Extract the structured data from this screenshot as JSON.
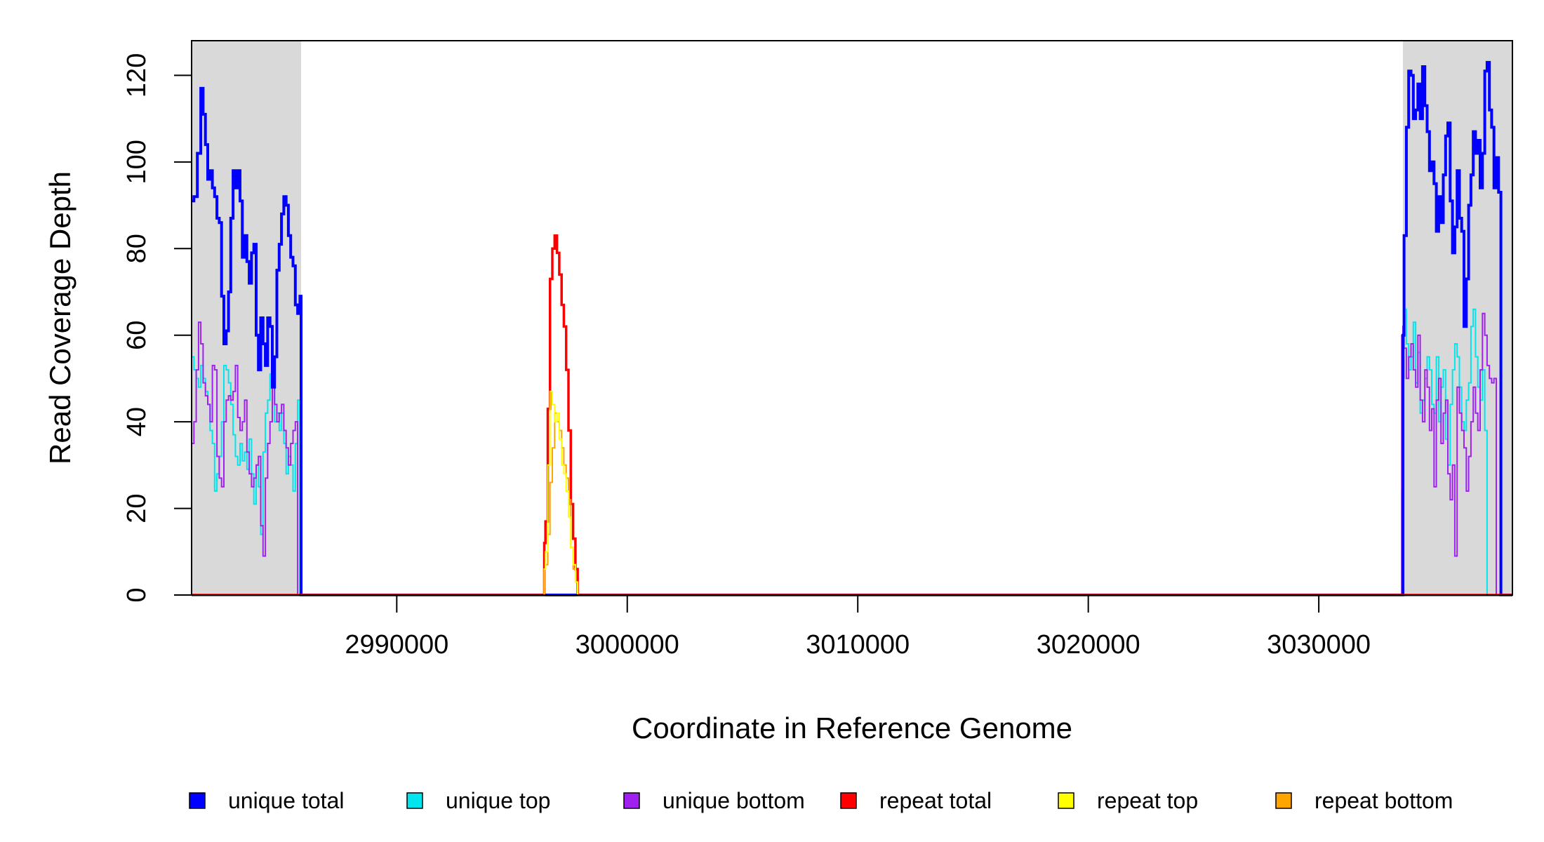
{
  "chart_data": {
    "type": "line",
    "title": "",
    "xlabel": "Coordinate in Reference Genome",
    "ylabel": "Read Coverage Depth",
    "xlim": [
      2981100,
      3038400
    ],
    "ylim": [
      0,
      128
    ],
    "x_ticks": [
      2990000,
      3000000,
      3010000,
      3020000,
      3030000
    ],
    "x_tick_labels": [
      "2990000",
      "3000000",
      "3010000",
      "3020000",
      "3030000"
    ],
    "y_ticks": [
      0,
      20,
      40,
      60,
      80,
      100,
      120
    ],
    "y_tick_labels": [
      "0",
      "20",
      "40",
      "60",
      "80",
      "100",
      "120"
    ],
    "grid": false,
    "legend_position": "bottom",
    "shaded_regions": [
      {
        "x0": 2981100,
        "x1": 2985850,
        "color": "#d9d9d9"
      },
      {
        "x0": 3033650,
        "x1": 3038400,
        "color": "#d9d9d9"
      }
    ],
    "series": [
      {
        "name": "unique total",
        "color": "#0000ff",
        "x": [
          2981100,
          2981200,
          2981350,
          2981500,
          2981600,
          2981700,
          2981800,
          2981900,
          2982000,
          2982100,
          2982200,
          2982300,
          2982400,
          2982500,
          2982600,
          2982700,
          2982800,
          2982900,
          2983000,
          2983100,
          2983200,
          2983300,
          2983400,
          2983500,
          2983600,
          2983700,
          2983800,
          2983900,
          2984000,
          2984100,
          2984200,
          2984300,
          2984400,
          2984500,
          2984600,
          2984700,
          2984800,
          2984900,
          2985000,
          2985100,
          2985200,
          2985300,
          2985400,
          2985500,
          2985600,
          2985700,
          2985800,
          2985850,
          2985900,
          2990000,
          3000000,
          3010000,
          3020000,
          3030000,
          3033600,
          3033650,
          3033700,
          3033800,
          3033900,
          3034000,
          3034100,
          3034200,
          3034300,
          3034400,
          3034500,
          3034600,
          3034700,
          3034800,
          3034900,
          3035000,
          3035100,
          3035200,
          3035300,
          3035400,
          3035500,
          3035600,
          3035700,
          3035800,
          3035900,
          3036000,
          3036100,
          3036200,
          3036300,
          3036400,
          3036500,
          3036600,
          3036700,
          3036800,
          3036900,
          3037000,
          3037100,
          3037200,
          3037300,
          3037400,
          3037500,
          3037600,
          3037700,
          3037800,
          3037900,
          3038000,
          3038100,
          3038200,
          3038300,
          3038400
        ],
        "y": [
          91,
          92,
          102,
          117,
          111,
          104,
          96,
          98,
          94,
          92,
          87,
          86,
          69,
          58,
          61,
          70,
          87,
          98,
          94,
          98,
          91,
          78,
          83,
          77,
          72,
          79,
          81,
          60,
          52,
          64,
          58,
          53,
          64,
          62,
          48,
          55,
          75,
          81,
          88,
          92,
          90,
          83,
          78,
          76,
          67,
          65,
          69,
          0,
          0,
          0,
          0,
          0,
          0,
          0,
          0,
          60,
          83,
          108,
          121,
          120,
          110,
          112,
          118,
          110,
          122,
          113,
          107,
          98,
          100,
          95,
          84,
          92,
          86,
          97,
          106,
          109,
          91,
          79,
          85,
          98,
          87,
          84,
          62,
          73,
          90,
          97,
          107,
          102,
          105,
          94,
          102,
          121,
          123,
          112,
          108,
          94,
          101,
          93,
          0,
          0,
          0,
          0,
          0,
          0
        ]
      },
      {
        "name": "unique top",
        "color": "#00e5ee",
        "x": [
          2981100,
          2981200,
          2981300,
          2981400,
          2981500,
          2981600,
          2981700,
          2981800,
          2981900,
          2982000,
          2982100,
          2982200,
          2982300,
          2982400,
          2982500,
          2982600,
          2982700,
          2982800,
          2982900,
          2983000,
          2983100,
          2983200,
          2983300,
          2983400,
          2983500,
          2983600,
          2983700,
          2983800,
          2983900,
          2984000,
          2984100,
          2984200,
          2984300,
          2984400,
          2984500,
          2984600,
          2984700,
          2984800,
          2984900,
          2985000,
          2985100,
          2985200,
          2985300,
          2985400,
          2985500,
          2985600,
          2985700,
          2985800,
          2985850,
          2985900,
          2990000,
          3000000,
          3010000,
          3020000,
          3030000,
          3033600,
          3033650,
          3033700,
          3033800,
          3033900,
          3034000,
          3034100,
          3034200,
          3034300,
          3034400,
          3034500,
          3034600,
          3034700,
          3034800,
          3034900,
          3035000,
          3035100,
          3035200,
          3035300,
          3035400,
          3035500,
          3035600,
          3035700,
          3035800,
          3035900,
          3036000,
          3036100,
          3036200,
          3036300,
          3036400,
          3036500,
          3036600,
          3036700,
          3036800,
          3036900,
          3037000,
          3037100,
          3037200,
          3037300,
          3037400,
          3037500,
          3037600,
          3037700,
          3037800,
          3037900,
          3038000,
          3038100,
          3038200,
          3038300,
          3038400
        ],
        "y": [
          55,
          52,
          50,
          48,
          53,
          50,
          47,
          44,
          38,
          35,
          24,
          28,
          32,
          40,
          53,
          52,
          49,
          44,
          37,
          32,
          30,
          35,
          31,
          33,
          29,
          36,
          28,
          21,
          30,
          25,
          14,
          33,
          42,
          45,
          51,
          48,
          40,
          42,
          38,
          42,
          35,
          28,
          32,
          30,
          24,
          35,
          45,
          0,
          0,
          0,
          0,
          0,
          0,
          0,
          0,
          24,
          50,
          66,
          58,
          52,
          55,
          63,
          49,
          56,
          42,
          45,
          50,
          55,
          52,
          44,
          42,
          55,
          40,
          48,
          52,
          36,
          30,
          44,
          52,
          58,
          55,
          48,
          40,
          38,
          45,
          49,
          62,
          66,
          55,
          48,
          45,
          52,
          38,
          0,
          0,
          0,
          0,
          0,
          0,
          0,
          0,
          0,
          0,
          0,
          0
        ]
      },
      {
        "name": "unique bottom",
        "color": "#a020f0",
        "x": [
          2981100,
          2981200,
          2981300,
          2981400,
          2981500,
          2981600,
          2981700,
          2981800,
          2981900,
          2982000,
          2982100,
          2982200,
          2982300,
          2982400,
          2982500,
          2982600,
          2982700,
          2982800,
          2982900,
          2983000,
          2983100,
          2983200,
          2983300,
          2983400,
          2983500,
          2983600,
          2983700,
          2983800,
          2983900,
          2984000,
          2984100,
          2984200,
          2984300,
          2984400,
          2984500,
          2984600,
          2984700,
          2984800,
          2984900,
          2985000,
          2985100,
          2985200,
          2985300,
          2985400,
          2985500,
          2985600,
          2985700,
          2985800,
          2985850,
          2985900,
          2990000,
          3000000,
          3010000,
          3020000,
          3030000,
          3033600,
          3033650,
          3033700,
          3033800,
          3033900,
          3034000,
          3034100,
          3034200,
          3034300,
          3034400,
          3034500,
          3034600,
          3034700,
          3034800,
          3034900,
          3035000,
          3035100,
          3035200,
          3035300,
          3035400,
          3035500,
          3035600,
          3035700,
          3035800,
          3035900,
          3036000,
          3036100,
          3036200,
          3036300,
          3036400,
          3036500,
          3036600,
          3036700,
          3036800,
          3036900,
          3037000,
          3037100,
          3037200,
          3037300,
          3037400,
          3037500,
          3037600,
          3037700,
          3037800,
          3037900,
          3038000,
          3038100,
          3038200,
          3038300,
          3038400
        ],
        "y": [
          35,
          40,
          52,
          63,
          58,
          49,
          46,
          44,
          40,
          53,
          52,
          32,
          27,
          25,
          40,
          45,
          46,
          45,
          47,
          53,
          41,
          38,
          40,
          45,
          33,
          28,
          25,
          27,
          30,
          32,
          16,
          9,
          27,
          35,
          40,
          48,
          44,
          40,
          42,
          44,
          38,
          34,
          30,
          35,
          38,
          40,
          0,
          0,
          0,
          0,
          0,
          0,
          0,
          0,
          0,
          60,
          62,
          57,
          50,
          55,
          58,
          52,
          48,
          60,
          45,
          40,
          52,
          48,
          38,
          43,
          25,
          45,
          50,
          35,
          42,
          45,
          28,
          22,
          30,
          9,
          48,
          42,
          38,
          34,
          24,
          32,
          40,
          48,
          42,
          38,
          52,
          65,
          60,
          53,
          50,
          49,
          50,
          0,
          0,
          0,
          0,
          0,
          0,
          0,
          0
        ]
      },
      {
        "name": "repeat total",
        "color": "#ff0000",
        "x": [
          2981100,
          2996400,
          2996450,
          2996550,
          2996650,
          2996750,
          2996850,
          2996950,
          2997050,
          2997150,
          2997250,
          2997350,
          2997450,
          2997550,
          2997650,
          2997750,
          2997850,
          3038400
        ],
        "y": [
          0,
          12,
          17,
          43,
          73,
          80,
          83,
          79,
          74,
          67,
          62,
          52,
          38,
          21,
          13,
          6,
          0,
          0
        ]
      },
      {
        "name": "repeat top",
        "color": "#ffff00",
        "x": [
          2981100,
          2996400,
          2996450,
          2996550,
          2996650,
          2996750,
          2996850,
          2996950,
          2997050,
          2997150,
          2997250,
          2997350,
          2997450,
          2997550,
          2997650,
          2997750,
          2997850,
          3038400
        ],
        "y": [
          0,
          6,
          10,
          30,
          47,
          44,
          40,
          42,
          36,
          30,
          28,
          24,
          18,
          11,
          7,
          3,
          0,
          0
        ]
      },
      {
        "name": "repeat bottom",
        "color": "#ffa500",
        "x": [
          2981100,
          2996400,
          2996450,
          2996550,
          2996650,
          2996750,
          2996850,
          2996950,
          2997050,
          2997150,
          2997250,
          2997350,
          2997450,
          2997550,
          2997650,
          2997750,
          2997850,
          3038400
        ],
        "y": [
          0,
          6,
          7,
          14,
          26,
          34,
          42,
          40,
          38,
          34,
          30,
          27,
          22,
          11,
          6,
          3,
          0,
          0
        ]
      }
    ]
  }
}
